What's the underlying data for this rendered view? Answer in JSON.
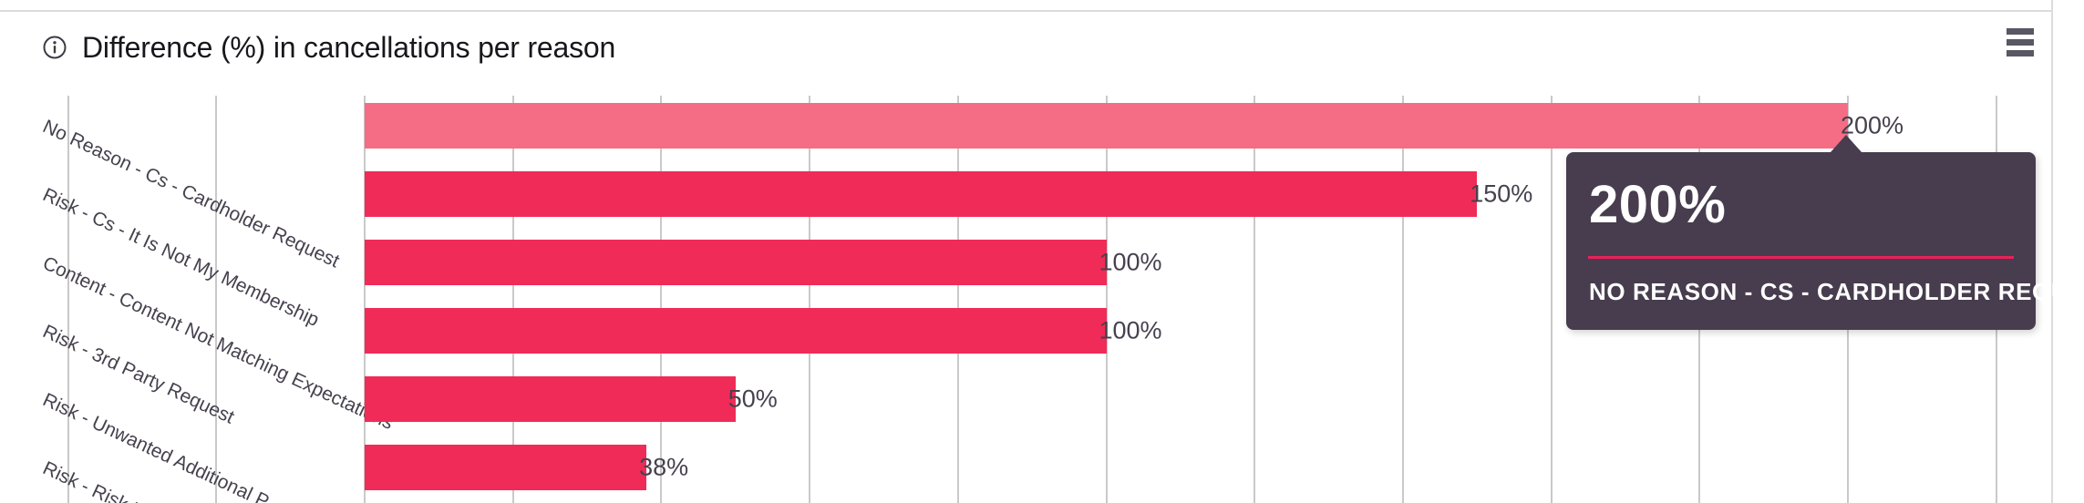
{
  "header": {
    "title": "Difference (%) in cancellations per reason",
    "info_icon": "info-circle-icon",
    "menu_icon": "hamburger-menu-icon"
  },
  "chart_data": {
    "type": "bar",
    "orientation": "horizontal",
    "title": "Difference (%) in cancellations per reason",
    "categories": [
      "No Reason - Cs - Cardholder Request",
      "Risk - Cs - It Is Not My Membership",
      "Content - Content Not Matching Expectations",
      "Risk - 3rd Party Request",
      "Risk - Unwanted Additional P",
      "Risk - Risk R"
    ],
    "values": [
      200,
      150,
      100,
      100,
      50,
      38
    ],
    "value_labels": [
      "200%",
      "150%",
      "100%",
      "100%",
      "50%",
      "38%"
    ],
    "highlighted_index": 0,
    "xaxis": {
      "min": -40,
      "max": 220,
      "step": 20,
      "unit": "%"
    },
    "grid": true,
    "legend": "none",
    "colors": {
      "bar": "#f02b57",
      "bar_highlight": "#f56d85",
      "gridline": "#c9c9c9",
      "label_text": "#46414e"
    }
  },
  "tooltip": {
    "value": "200%",
    "label": "NO REASON - CS - CARDHOLDER REQUEST",
    "colors": {
      "bg": "#473d4e",
      "divider": "#ea2158",
      "text": "#ffffff"
    }
  }
}
